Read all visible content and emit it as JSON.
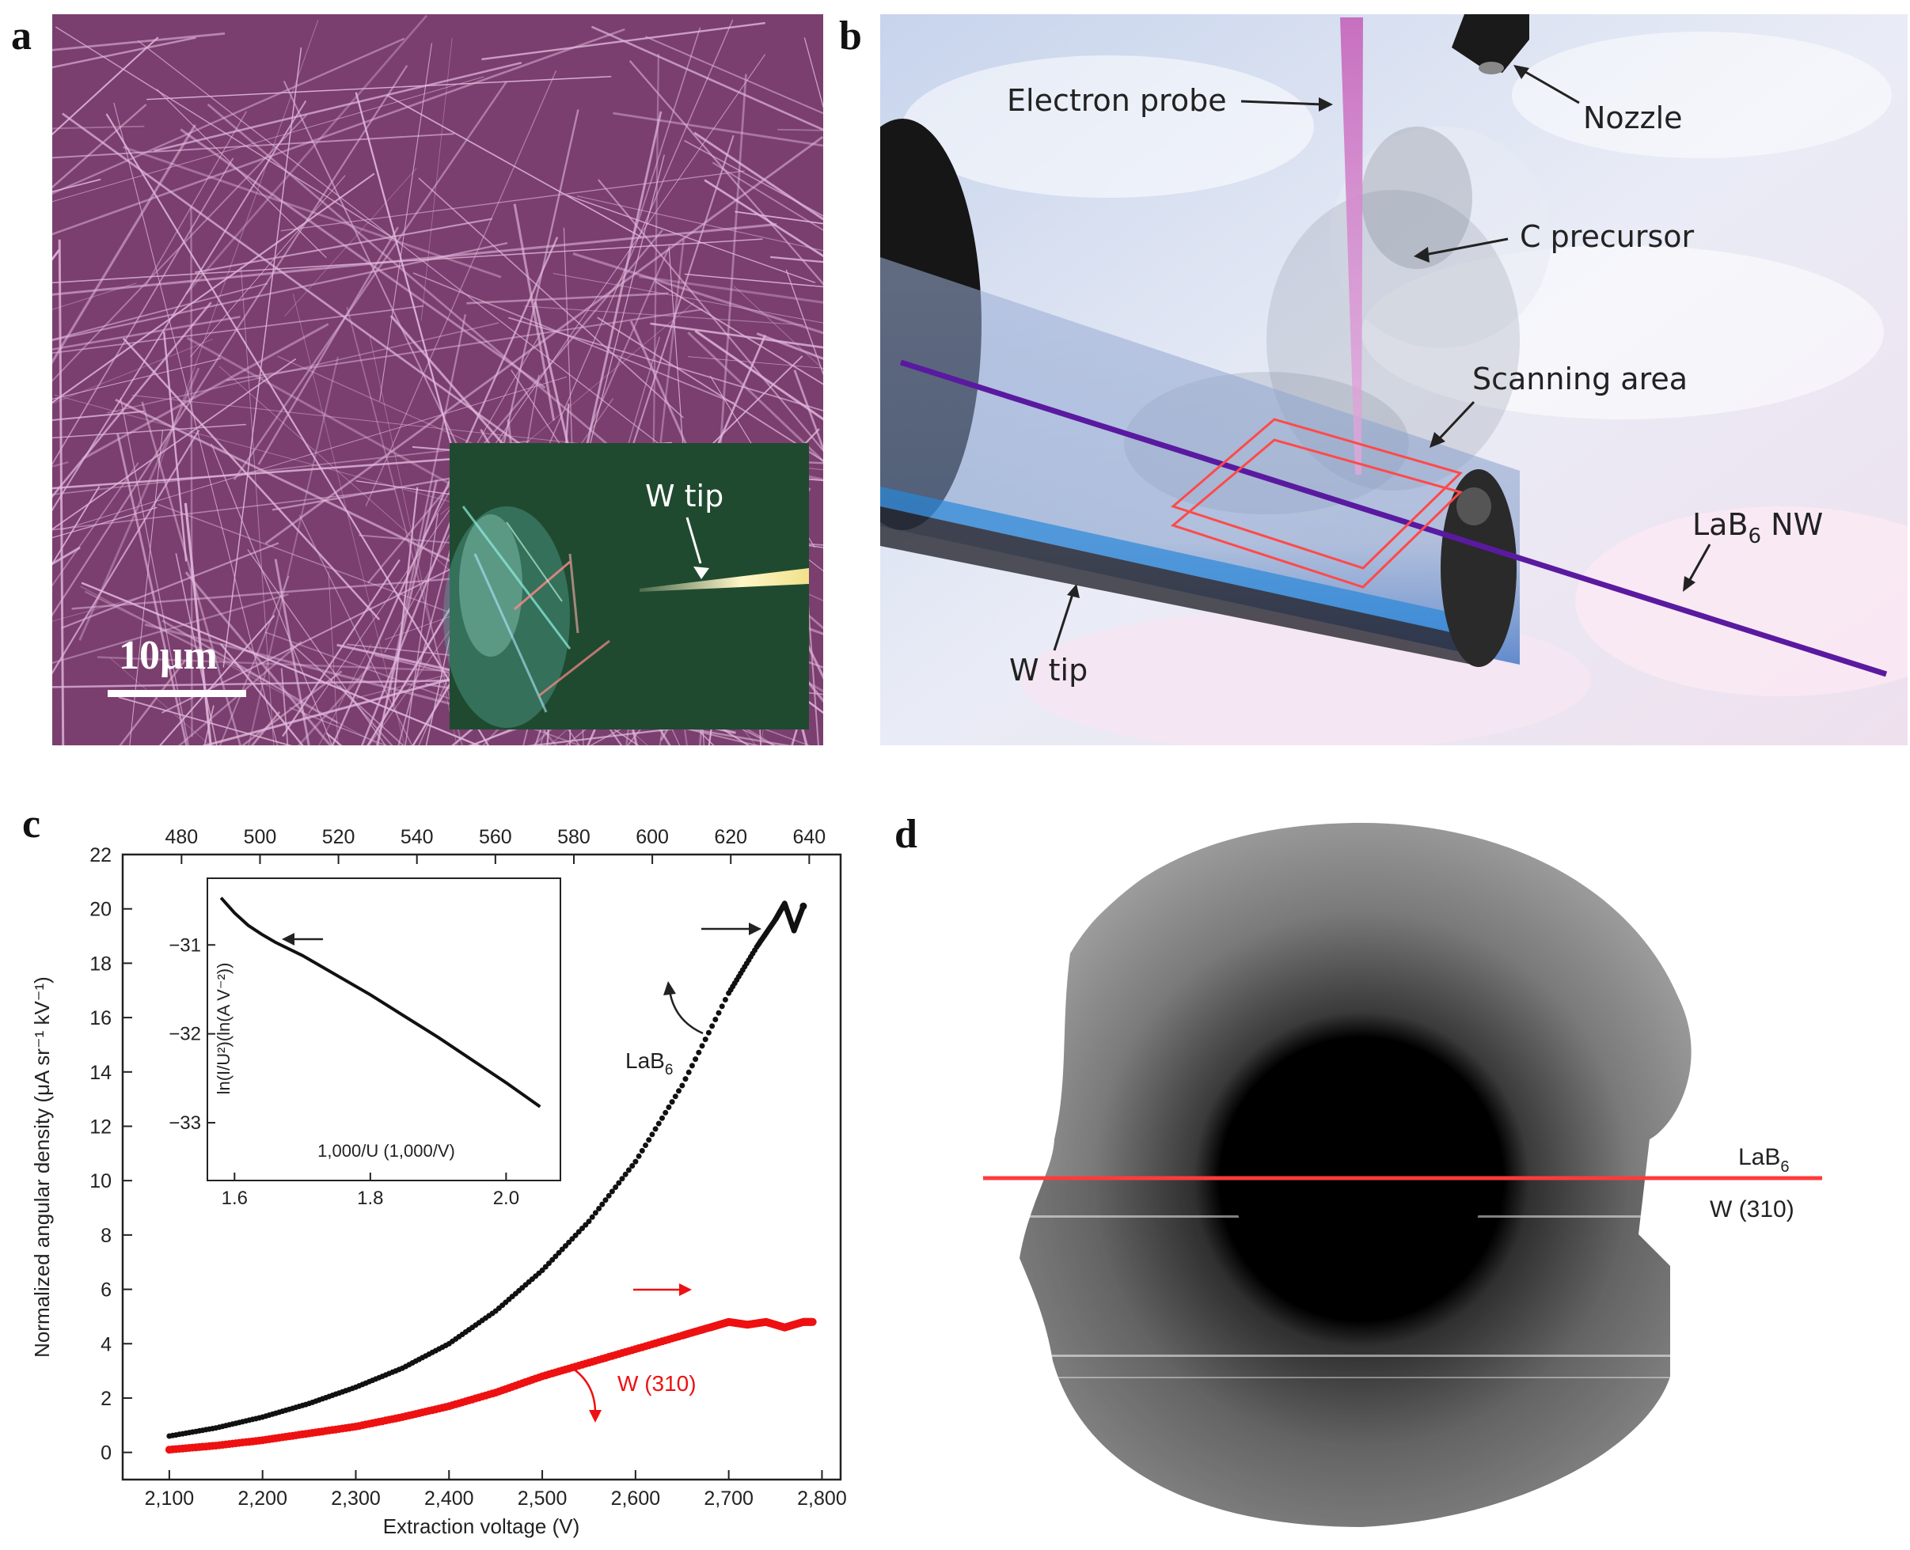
{
  "panels": {
    "a": {
      "letter": "a",
      "scale_bar": "10μm",
      "inset_label": "W tip"
    },
    "b": {
      "letter": "b",
      "labels": {
        "electron_probe": "Electron probe",
        "nozzle": "Nozzle",
        "c_precursor": "C precursor",
        "scanning_area": "Scanning area",
        "lab6_nw_base": "LaB",
        "lab6_nw_sub": "6",
        "lab6_nw_suffix": " NW",
        "w_tip": "W tip"
      }
    },
    "c": {
      "letter": "c",
      "series_label_lab6_base": "LaB",
      "series_label_lab6_sub": "6",
      "series_label_w": "W (310)",
      "inset_xlabel": "1,000/U (1,000/V)",
      "inset_ylabel": "ln(I/U²)(ln(A V⁻²))"
    },
    "d": {
      "letter": "d",
      "label_top_base": "LaB",
      "label_top_sub": "6",
      "label_bottom": "W (310)"
    }
  },
  "colors": {
    "sem_bg": "#7a3f6e",
    "fiber": "#e3b9de",
    "inset_green": "#1f4a30",
    "wire_purple": "#5a1aa0",
    "scan_red": "#ff4a4a",
    "w_series": "#ee1111",
    "lab6_series": "#111111"
  },
  "chart_data": {
    "type": "scatter",
    "xlabel": "Extraction voltage (V)",
    "ylabel": "Normalized angular density (μA sr⁻¹ kV⁻¹)",
    "xlim": [
      2050,
      2820
    ],
    "ylim": [
      -1,
      22
    ],
    "xticks": [
      2100,
      2200,
      2300,
      2400,
      2500,
      2600,
      2700,
      2800
    ],
    "xtick_labels": [
      "2,100",
      "2,200",
      "2,300",
      "2,400",
      "2,500",
      "2,600",
      "2,700",
      "2,800"
    ],
    "yticks": [
      0,
      2,
      4,
      6,
      8,
      10,
      12,
      14,
      16,
      18,
      20,
      22
    ],
    "top_xlim": [
      465,
      648
    ],
    "top_xticks": [
      480,
      500,
      520,
      540,
      560,
      580,
      600,
      620,
      640
    ],
    "series": [
      {
        "name": "LaB6",
        "x": [
          2100,
          2150,
          2200,
          2250,
          2300,
          2350,
          2400,
          2450,
          2500,
          2550,
          2600,
          2650,
          2700,
          2730,
          2750,
          2760,
          2770,
          2780
        ],
        "y": [
          0.6,
          0.9,
          1.3,
          1.8,
          2.4,
          3.1,
          4.0,
          5.2,
          6.7,
          8.5,
          10.7,
          13.5,
          16.9,
          18.6,
          19.6,
          20.2,
          19.2,
          20.1
        ]
      },
      {
        "name": "W (310)",
        "x": [
          2100,
          2150,
          2200,
          2250,
          2300,
          2350,
          2400,
          2450,
          2500,
          2550,
          2600,
          2650,
          2680,
          2700,
          2720,
          2740,
          2760,
          2780,
          2790
        ],
        "y": [
          0.1,
          0.25,
          0.45,
          0.7,
          0.95,
          1.3,
          1.7,
          2.2,
          2.8,
          3.3,
          3.8,
          4.3,
          4.6,
          4.8,
          4.7,
          4.8,
          4.6,
          4.8,
          4.8
        ]
      }
    ],
    "inset": {
      "type": "line",
      "xlim": [
        1.56,
        2.08
      ],
      "ylim": [
        -33.65,
        -30.25
      ],
      "xticks": [
        1.6,
        1.8,
        2.0
      ],
      "xtick_labels": [
        "1.6",
        "1.8",
        "2.0"
      ],
      "yticks": [
        -31,
        -32,
        -33
      ],
      "ytick_labels": [
        "−31",
        "−32",
        "−33"
      ],
      "x": [
        1.58,
        1.6,
        1.62,
        1.64,
        1.66,
        1.7,
        1.8,
        1.9,
        2.0,
        2.05
      ],
      "y": [
        -30.47,
        -30.64,
        -30.78,
        -30.88,
        -30.97,
        -31.12,
        -31.56,
        -32.04,
        -32.55,
        -32.82
      ]
    }
  }
}
